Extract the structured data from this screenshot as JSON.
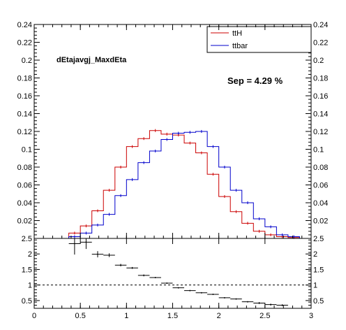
{
  "chart_data": [
    {
      "type": "line",
      "title": "dEtajavgj_MaxdEta",
      "annotation": "Sep = 4.29 %",
      "xlim": [
        0,
        3
      ],
      "ylim": [
        0,
        0.24
      ],
      "bin_width": 0.125,
      "bins_lo": [
        0,
        0.125,
        0.25,
        0.375,
        0.5,
        0.625,
        0.75,
        0.875,
        1.0,
        1.125,
        1.25,
        1.375,
        1.5,
        1.625,
        1.75,
        1.875,
        2.0,
        2.125,
        2.25,
        2.375,
        2.5,
        2.625,
        2.75,
        2.875
      ],
      "series": [
        {
          "name": "ttH",
          "color": "#cc0000",
          "values": [
            0,
            0,
            0,
            0.006,
            0.014,
            0.031,
            0.054,
            0.08,
            0.103,
            0.112,
            0.121,
            0.117,
            0.116,
            0.107,
            0.096,
            0.072,
            0.047,
            0.03,
            0.017,
            0.008,
            0.004,
            0.002,
            0.001,
            0
          ]
        },
        {
          "name": "ttbar",
          "color": "#0000cc",
          "values": [
            0,
            0,
            0,
            0.002,
            0.006,
            0.015,
            0.027,
            0.048,
            0.066,
            0.085,
            0.098,
            0.111,
            0.118,
            0.119,
            0.12,
            0.103,
            0.08,
            0.054,
            0.04,
            0.022,
            0.013,
            0.004,
            0.002,
            0
          ]
        }
      ],
      "yticks": [
        0.02,
        0.04,
        0.06,
        0.08,
        0.1,
        0.12,
        0.14,
        0.16,
        0.18,
        0.2,
        0.22,
        0.24
      ],
      "ytick_labels": [
        "0.02",
        "0.04",
        "0.06",
        "0.08",
        "0.1",
        "0.12",
        "0.14",
        "0.16",
        "0.18",
        "0.2",
        "0.22",
        "0.24"
      ],
      "legend": "top-right",
      "grid": false
    },
    {
      "type": "scatter",
      "xlim": [
        0,
        3
      ],
      "ylim": [
        0.25,
        2.5
      ],
      "reference_line": 1,
      "points": [
        {
          "x": 0.4375,
          "y": 2.33,
          "xerr": 0.0625,
          "yerr": 0.35
        },
        {
          "x": 0.5625,
          "y": 2.38,
          "xerr": 0.0625,
          "yerr": 0.22
        },
        {
          "x": 0.6875,
          "y": 1.99,
          "xerr": 0.0625,
          "yerr": 0.1
        },
        {
          "x": 0.8125,
          "y": 1.96,
          "xerr": 0.0625,
          "yerr": 0.06
        },
        {
          "x": 0.9375,
          "y": 1.64,
          "xerr": 0.0625,
          "yerr": 0.04
        },
        {
          "x": 1.0625,
          "y": 1.55,
          "xerr": 0.0625,
          "yerr": 0.03
        },
        {
          "x": 1.1875,
          "y": 1.31,
          "xerr": 0.0625,
          "yerr": 0.03
        },
        {
          "x": 1.3125,
          "y": 1.24,
          "xerr": 0.0625,
          "yerr": 0.02
        },
        {
          "x": 1.4375,
          "y": 1.06,
          "xerr": 0.0625,
          "yerr": 0.02
        },
        {
          "x": 1.5625,
          "y": 0.91,
          "xerr": 0.0625,
          "yerr": 0.02
        },
        {
          "x": 1.6875,
          "y": 0.82,
          "xerr": 0.0625,
          "yerr": 0.02
        },
        {
          "x": 1.8125,
          "y": 0.75,
          "xerr": 0.0625,
          "yerr": 0.02
        },
        {
          "x": 1.9375,
          "y": 0.7,
          "xerr": 0.0625,
          "yerr": 0.02
        },
        {
          "x": 2.0625,
          "y": 0.59,
          "xerr": 0.0625,
          "yerr": 0.02
        },
        {
          "x": 2.1875,
          "y": 0.55,
          "xerr": 0.0625,
          "yerr": 0.02
        },
        {
          "x": 2.3125,
          "y": 0.46,
          "xerr": 0.0625,
          "yerr": 0.02
        },
        {
          "x": 2.4375,
          "y": 0.42,
          "xerr": 0.0625,
          "yerr": 0.03
        },
        {
          "x": 2.5625,
          "y": 0.37,
          "xerr": 0.0625,
          "yerr": 0.03
        },
        {
          "x": 2.6875,
          "y": 0.35,
          "xerr": 0.0625,
          "yerr": 0.03
        }
      ],
      "yticks": [
        0.5,
        1,
        1.5,
        2,
        2.5
      ],
      "ytick_labels": [
        "0.5",
        "1",
        "1.5",
        "2",
        "2.5"
      ],
      "xticks": [
        0,
        0.5,
        1,
        1.5,
        2,
        2.5,
        3
      ],
      "xtick_labels": [
        "0",
        "0.5",
        "1",
        "1.5",
        "2",
        "2.5",
        "3"
      ],
      "grid": false
    }
  ]
}
